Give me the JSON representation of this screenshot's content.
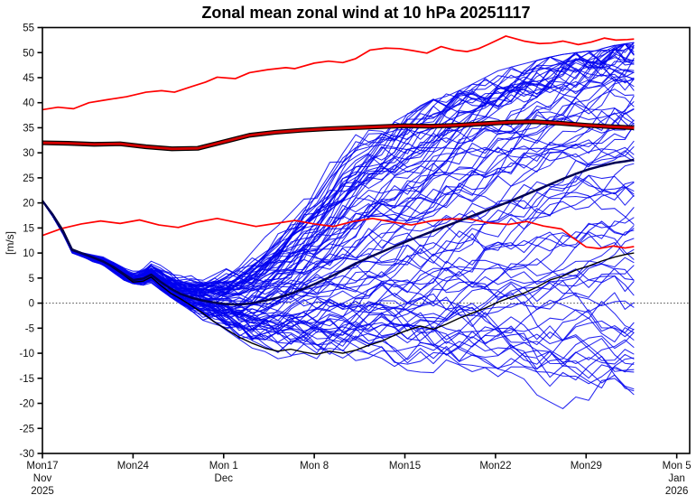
{
  "chart_data": {
    "type": "line",
    "title": "Zonal mean zonal wind at 10 hPa 20251117",
    "ylabel": "[m/s]",
    "ylim": [
      -30,
      55
    ],
    "yticks": [
      55,
      50,
      45,
      40,
      35,
      30,
      25,
      20,
      15,
      10,
      5,
      0,
      -5,
      -10,
      -15,
      -20,
      -25,
      -30
    ],
    "xlim_days": [
      0,
      50
    ],
    "xticks": [
      {
        "day": 0,
        "lines": [
          "Mon17",
          "Nov",
          "2025"
        ]
      },
      {
        "day": 7,
        "lines": [
          "Mon24"
        ]
      },
      {
        "day": 14,
        "lines": [
          "Mon 1",
          "Dec"
        ]
      },
      {
        "day": 21,
        "lines": [
          "Mon 8"
        ]
      },
      {
        "day": 28,
        "lines": [
          "Mon15"
        ]
      },
      {
        "day": 35,
        "lines": [
          "Mon22"
        ]
      },
      {
        "day": 42,
        "lines": [
          "Mon29"
        ]
      },
      {
        "day": 49,
        "lines": [
          "Mon 5",
          "Jan",
          "2026"
        ]
      }
    ],
    "zero_line": {
      "value": 0,
      "color": "#444444"
    },
    "grid": false,
    "legend": false,
    "forecast_end_day": 45.7,
    "colors": {
      "member_blue": "#0000EE",
      "ensemble_mean_navy": "#000055",
      "control_black": "#000000",
      "climatology_core_red": "#D40000",
      "climatology_outline_black": "#000000",
      "percentile_red": "#FF0000",
      "axis": "#000000"
    },
    "series": {
      "climatology_upper": {
        "name": "climatology upper percentile",
        "points": [
          [
            0,
            38.6
          ],
          [
            1.2,
            39.1
          ],
          [
            2.4,
            38.8
          ],
          [
            3.6,
            40.0
          ],
          [
            5,
            40.6
          ],
          [
            6.5,
            41.2
          ],
          [
            8,
            42.1
          ],
          [
            9.2,
            42.4
          ],
          [
            10.2,
            42.1
          ],
          [
            11.5,
            43.2
          ],
          [
            12.6,
            44.1
          ],
          [
            13.5,
            45.1
          ],
          [
            14.9,
            44.8
          ],
          [
            16,
            46.0
          ],
          [
            17.4,
            46.6
          ],
          [
            18.8,
            47.0
          ],
          [
            19.5,
            46.8
          ],
          [
            21,
            47.9
          ],
          [
            22.1,
            48.3
          ],
          [
            23.2,
            48.0
          ],
          [
            24.2,
            48.8
          ],
          [
            25.3,
            50.5
          ],
          [
            26.5,
            50.9
          ],
          [
            27.6,
            50.8
          ],
          [
            28.6,
            50.4
          ],
          [
            29.7,
            49.9
          ],
          [
            30.8,
            51.2
          ],
          [
            31.8,
            50.5
          ],
          [
            32.8,
            50.2
          ],
          [
            33.7,
            50.8
          ],
          [
            34.4,
            51.6
          ],
          [
            35.8,
            53.3
          ],
          [
            37.2,
            52.3
          ],
          [
            38.4,
            51.8
          ],
          [
            39.3,
            51.9
          ],
          [
            40.2,
            52.3
          ],
          [
            41.4,
            51.6
          ],
          [
            42.4,
            52.1
          ],
          [
            43.4,
            52.9
          ],
          [
            44.3,
            52.5
          ],
          [
            45.2,
            52.6
          ],
          [
            45.7,
            52.7
          ]
        ]
      },
      "climatology_mean": {
        "name": "climatological mean",
        "points": [
          [
            0,
            32.0
          ],
          [
            2,
            31.9
          ],
          [
            4,
            31.7
          ],
          [
            6,
            31.8
          ],
          [
            8,
            31.2
          ],
          [
            10,
            30.8
          ],
          [
            12,
            30.9
          ],
          [
            14,
            32.2
          ],
          [
            16,
            33.5
          ],
          [
            18,
            34.1
          ],
          [
            20,
            34.5
          ],
          [
            22,
            34.8
          ],
          [
            24,
            35.0
          ],
          [
            26,
            35.2
          ],
          [
            28,
            35.4
          ],
          [
            30,
            35.3
          ],
          [
            32,
            35.5
          ],
          [
            34,
            35.8
          ],
          [
            36,
            36.1
          ],
          [
            38,
            36.2
          ],
          [
            40,
            35.9
          ],
          [
            42,
            35.5
          ],
          [
            44,
            35.2
          ],
          [
            45.7,
            35.0
          ]
        ]
      },
      "climatology_lower": {
        "name": "climatology lower percentile",
        "points": [
          [
            0,
            13.5
          ],
          [
            1.5,
            14.9
          ],
          [
            3,
            15.8
          ],
          [
            4.5,
            16.4
          ],
          [
            6,
            15.9
          ],
          [
            7.5,
            16.6
          ],
          [
            9,
            15.6
          ],
          [
            10.5,
            15.1
          ],
          [
            12,
            16.2
          ],
          [
            13.5,
            16.9
          ],
          [
            15,
            16.1
          ],
          [
            16.5,
            15.3
          ],
          [
            18,
            15.9
          ],
          [
            19.5,
            16.5
          ],
          [
            21,
            15.8
          ],
          [
            22.5,
            15.3
          ],
          [
            24,
            16.3
          ],
          [
            25.5,
            16.9
          ],
          [
            27,
            16.2
          ],
          [
            28.5,
            15.6
          ],
          [
            30,
            16.4
          ],
          [
            31.5,
            16.8
          ],
          [
            33,
            16.8
          ],
          [
            34.5,
            16.0
          ],
          [
            36,
            15.7
          ],
          [
            37.4,
            16.3
          ],
          [
            38.7,
            15.4
          ],
          [
            40.1,
            14.8
          ],
          [
            41,
            13.0
          ],
          [
            42,
            11.2
          ],
          [
            43,
            10.9
          ],
          [
            44.1,
            11.4
          ],
          [
            45,
            11.0
          ],
          [
            45.7,
            11.3
          ]
        ]
      },
      "ensemble_mean": {
        "name": "ensemble mean",
        "points": [
          [
            0,
            20.4
          ],
          [
            0.8,
            17.6
          ],
          [
            1.6,
            14.2
          ],
          [
            2.3,
            10.6
          ],
          [
            3.1,
            9.9
          ],
          [
            3.9,
            9.1
          ],
          [
            4.7,
            8.3
          ],
          [
            5.5,
            7.2
          ],
          [
            6.3,
            5.8
          ],
          [
            7,
            4.6
          ],
          [
            7.8,
            4.9
          ],
          [
            8.4,
            5.7
          ],
          [
            9.1,
            4.3
          ],
          [
            9.9,
            2.9
          ],
          [
            10.7,
            1.8
          ],
          [
            11.5,
            1.1
          ],
          [
            12.4,
            0.5
          ],
          [
            13.3,
            0.1
          ],
          [
            14.2,
            -0.2
          ],
          [
            15.2,
            -0.3
          ],
          [
            16.2,
            0.0
          ],
          [
            17.2,
            0.5
          ],
          [
            18.2,
            1.1
          ],
          [
            19.2,
            1.9
          ],
          [
            20.2,
            2.9
          ],
          [
            21.2,
            4.0
          ],
          [
            22.2,
            5.2
          ],
          [
            23.2,
            6.5
          ],
          [
            24.2,
            7.9
          ],
          [
            25.2,
            9.1
          ],
          [
            26.2,
            10.2
          ],
          [
            27.2,
            11.3
          ],
          [
            28.2,
            12.4
          ],
          [
            29.2,
            13.4
          ],
          [
            30.2,
            14.4
          ],
          [
            31.2,
            15.4
          ],
          [
            32.2,
            16.4
          ],
          [
            33.2,
            17.4
          ],
          [
            34.2,
            18.4
          ],
          [
            35.2,
            19.4
          ],
          [
            36.2,
            20.4
          ],
          [
            37.2,
            21.5
          ],
          [
            38.2,
            22.6
          ],
          [
            39.2,
            23.7
          ],
          [
            40.2,
            24.8
          ],
          [
            41.2,
            25.8
          ],
          [
            42.2,
            26.7
          ],
          [
            43.2,
            27.4
          ],
          [
            44.2,
            28.0
          ],
          [
            45,
            28.3
          ],
          [
            45.7,
            28.6
          ]
        ]
      },
      "control": {
        "name": "control forecast",
        "points": [
          [
            0,
            20.5
          ],
          [
            0.8,
            17.8
          ],
          [
            1.6,
            14.6
          ],
          [
            2.3,
            10.8
          ],
          [
            3.1,
            10.0
          ],
          [
            3.9,
            9.2
          ],
          [
            4.7,
            8.4
          ],
          [
            5.5,
            7.0
          ],
          [
            6.3,
            5.6
          ],
          [
            7,
            4.2
          ],
          [
            7.8,
            4.4
          ],
          [
            8.4,
            5.2
          ],
          [
            9.1,
            3.6
          ],
          [
            9.9,
            2.0
          ],
          [
            10.7,
            0.8
          ],
          [
            11.5,
            -0.5
          ],
          [
            12.4,
            -2.0
          ],
          [
            13.3,
            -3.8
          ],
          [
            14.2,
            -5.2
          ],
          [
            15.2,
            -6.8
          ],
          [
            16.2,
            -8.0
          ],
          [
            17.2,
            -9.0
          ],
          [
            18.2,
            -9.6
          ],
          [
            19.2,
            -9.2
          ],
          [
            20.2,
            -9.8
          ],
          [
            21.2,
            -10.2
          ],
          [
            22.2,
            -9.6
          ],
          [
            23.2,
            -10.0
          ],
          [
            24.2,
            -9.4
          ],
          [
            25.2,
            -8.4
          ],
          [
            26.2,
            -7.6
          ],
          [
            27.2,
            -6.4
          ],
          [
            28.2,
            -5.4
          ],
          [
            29.2,
            -4.6
          ],
          [
            30.2,
            -5.2
          ],
          [
            31.2,
            -4.2
          ],
          [
            32.2,
            -3.0
          ],
          [
            33.2,
            -2.0
          ],
          [
            34.2,
            -1.0
          ],
          [
            35.2,
            0.2
          ],
          [
            36.2,
            1.2
          ],
          [
            37.2,
            2.0
          ],
          [
            38.2,
            3.2
          ],
          [
            39.2,
            4.6
          ],
          [
            40.2,
            5.4
          ],
          [
            41.2,
            6.6
          ],
          [
            42.2,
            7.4
          ],
          [
            43.2,
            8.4
          ],
          [
            44.2,
            9.2
          ],
          [
            45,
            9.7
          ],
          [
            45.7,
            10.0
          ]
        ]
      },
      "members": {
        "name": "ensemble members",
        "count": 90,
        "seed": 13,
        "start_value": 20.4,
        "envelope": {
          "days": [
            0,
            2.3,
            4.7,
            6.3,
            7.5,
            8.4,
            9.9,
            11.5,
            12.8,
            14.3,
            15.8,
            17.3,
            18.8,
            20.3,
            21.8,
            23.3,
            24.8,
            26.3,
            27.8,
            29.3,
            30.8,
            32.3,
            33.8,
            35.3,
            36.8,
            38.3,
            39.8,
            41.3,
            42.8,
            44.3,
            45.7
          ],
          "min": [
            20.25,
            10.0,
            7.4,
            4.6,
            3.4,
            4.0,
            1.2,
            -1.6,
            -4.4,
            -8.0,
            -13.0,
            -11.5,
            -12.5,
            -14.5,
            -13.0,
            -16.0,
            -14.0,
            -15.0,
            -17.5,
            -15.5,
            -19.5,
            -17.0,
            -16.5,
            -20.0,
            -23.5,
            -25.7,
            -22.0,
            -18.5,
            -20.0,
            -19.0,
            -18.8
          ],
          "max": [
            20.55,
            11.2,
            9.2,
            7.0,
            6.6,
            8.8,
            6.2,
            5.6,
            6.0,
            8.0,
            11.0,
            16.0,
            21.0,
            26.0,
            33.0,
            37.5,
            36.0,
            34.5,
            38.0,
            39.5,
            41.5,
            42.5,
            44.5,
            46.5,
            47.5,
            48.5,
            49.5,
            50.0,
            50.5,
            51.5,
            52.0
          ]
        }
      }
    }
  }
}
